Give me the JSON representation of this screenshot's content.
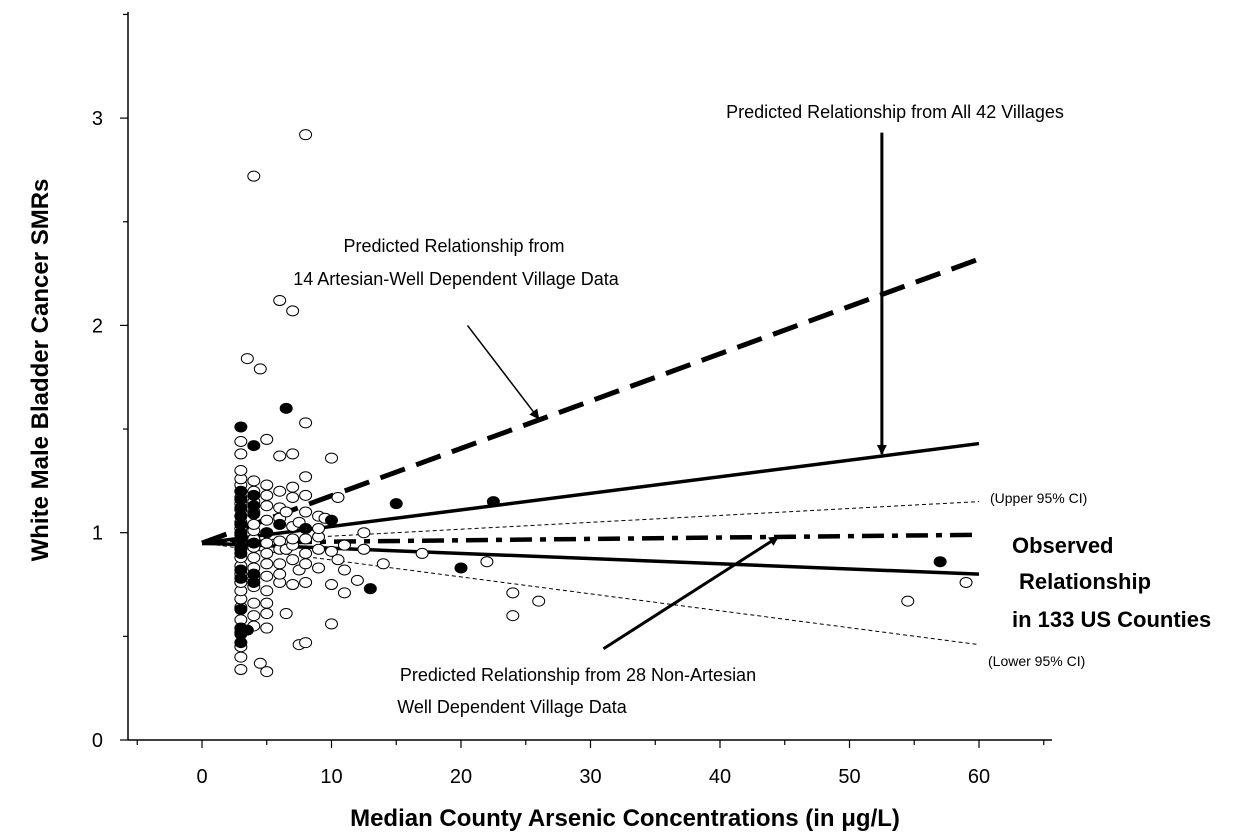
{
  "chart_data": {
    "type": "scatter",
    "xlabel": "Median County Arsenic Concentrations (in  μg/L)",
    "ylabel": "White Male Bladder Cancer SMRs",
    "xlim": [
      -5,
      65
    ],
    "ylim": [
      0,
      3.5
    ],
    "x_ticks": [
      0,
      10,
      20,
      30,
      40,
      50,
      60
    ],
    "y_ticks": [
      0,
      1,
      2,
      3
    ],
    "x_tick_labels": [
      "0",
      "10",
      "20",
      "30",
      "40",
      "50",
      "60"
    ],
    "y_tick_labels": [
      "0",
      "1",
      "2",
      "3"
    ],
    "grid": false,
    "series": [
      {
        "marker": "open-circle",
        "points": [
          [
            3,
            0.34
          ],
          [
            3,
            0.4
          ],
          [
            3,
            0.45
          ],
          [
            3,
            0.52
          ],
          [
            3,
            0.58
          ],
          [
            3,
            0.64
          ],
          [
            3,
            0.68
          ],
          [
            3,
            0.72
          ],
          [
            3,
            0.76
          ],
          [
            3,
            0.8
          ],
          [
            3,
            0.84
          ],
          [
            3,
            0.88
          ],
          [
            3,
            0.92
          ],
          [
            3,
            0.96
          ],
          [
            3,
            0.99
          ],
          [
            3,
            1.02
          ],
          [
            3,
            1.05
          ],
          [
            3,
            1.08
          ],
          [
            3,
            1.11
          ],
          [
            3,
            1.14
          ],
          [
            3,
            1.17
          ],
          [
            3,
            1.2
          ],
          [
            3,
            1.23
          ],
          [
            3,
            1.26
          ],
          [
            3,
            1.3
          ],
          [
            3,
            1.38
          ],
          [
            3,
            1.44
          ],
          [
            3.5,
            1.84
          ],
          [
            4,
            2.72
          ],
          [
            4,
            0.55
          ],
          [
            4,
            0.6
          ],
          [
            4,
            0.66
          ],
          [
            4,
            0.74
          ],
          [
            4,
            0.78
          ],
          [
            4,
            0.83
          ],
          [
            4,
            0.88
          ],
          [
            4,
            0.93
          ],
          [
            4,
            0.97
          ],
          [
            4,
            1.01
          ],
          [
            4,
            1.04
          ],
          [
            4,
            1.1
          ],
          [
            4,
            1.15
          ],
          [
            4,
            1.2
          ],
          [
            4,
            1.25
          ],
          [
            4.5,
            1.79
          ],
          [
            4.5,
            0.37
          ],
          [
            5,
            0.33
          ],
          [
            5,
            0.54
          ],
          [
            5,
            0.61
          ],
          [
            5,
            0.66
          ],
          [
            5,
            0.72
          ],
          [
            5,
            0.79
          ],
          [
            5,
            0.85
          ],
          [
            5,
            0.9
          ],
          [
            5,
            0.95
          ],
          [
            5,
            1.0
          ],
          [
            5,
            1.06
          ],
          [
            5,
            1.13
          ],
          [
            5,
            1.18
          ],
          [
            5,
            1.23
          ],
          [
            5,
            1.45
          ],
          [
            6,
            2.12
          ],
          [
            6,
            0.76
          ],
          [
            6,
            0.8
          ],
          [
            6,
            0.85
          ],
          [
            6,
            0.92
          ],
          [
            6,
            0.96
          ],
          [
            6,
            1.07
          ],
          [
            6,
            1.12
          ],
          [
            6,
            1.2
          ],
          [
            6,
            1.37
          ],
          [
            6.5,
            0.61
          ],
          [
            6.5,
            0.92
          ],
          [
            6.5,
            1.1
          ],
          [
            7,
            2.07
          ],
          [
            7,
            0.75
          ],
          [
            7,
            0.87
          ],
          [
            7,
            0.94
          ],
          [
            7,
            0.97
          ],
          [
            7,
            1.03
          ],
          [
            7,
            1.17
          ],
          [
            7,
            1.22
          ],
          [
            7,
            1.38
          ],
          [
            7.5,
            0.46
          ],
          [
            7.5,
            0.82
          ],
          [
            7.5,
            1.05
          ],
          [
            8,
            2.92
          ],
          [
            8,
            0.47
          ],
          [
            8,
            0.76
          ],
          [
            8,
            0.85
          ],
          [
            8,
            0.9
          ],
          [
            8,
            0.97
          ],
          [
            8,
            1.1
          ],
          [
            8,
            1.18
          ],
          [
            8,
            1.27
          ],
          [
            8,
            1.53
          ],
          [
            9,
            0.83
          ],
          [
            9,
            0.92
          ],
          [
            9,
            0.98
          ],
          [
            9,
            1.02
          ],
          [
            9,
            1.08
          ],
          [
            9.5,
            1.07
          ],
          [
            10,
            0.56
          ],
          [
            10,
            0.75
          ],
          [
            10,
            0.91
          ],
          [
            10,
            1.36
          ],
          [
            10.5,
            0.87
          ],
          [
            10.5,
            1.17
          ],
          [
            11,
            0.71
          ],
          [
            11,
            0.82
          ],
          [
            11,
            0.94
          ],
          [
            12,
            0.77
          ],
          [
            12.5,
            0.92
          ],
          [
            12.5,
            1.0
          ],
          [
            14,
            0.85
          ],
          [
            17,
            0.9
          ],
          [
            22,
            0.86
          ],
          [
            24,
            0.6
          ],
          [
            24,
            0.71
          ],
          [
            26,
            0.67
          ],
          [
            54.5,
            0.67
          ],
          [
            59,
            0.76
          ]
        ]
      },
      {
        "marker": "filled-circle",
        "points": [
          [
            3,
            0.47
          ],
          [
            3,
            0.51
          ],
          [
            3,
            0.54
          ],
          [
            3,
            0.63
          ],
          [
            3,
            0.78
          ],
          [
            3,
            0.82
          ],
          [
            3,
            0.9
          ],
          [
            3,
            0.93
          ],
          [
            3,
            0.97
          ],
          [
            3,
            1.0
          ],
          [
            3,
            1.04
          ],
          [
            3,
            1.08
          ],
          [
            3,
            1.12
          ],
          [
            3,
            1.16
          ],
          [
            3,
            1.2
          ],
          [
            3,
            1.51
          ],
          [
            3.5,
            0.53
          ],
          [
            4,
            0.76
          ],
          [
            4,
            0.8
          ],
          [
            4,
            0.95
          ],
          [
            4,
            1.09
          ],
          [
            4,
            1.13
          ],
          [
            4,
            1.18
          ],
          [
            4,
            1.42
          ],
          [
            5,
            1.0
          ],
          [
            6,
            1.04
          ],
          [
            6.5,
            1.6
          ],
          [
            8,
            1.02
          ],
          [
            10,
            1.06
          ],
          [
            13,
            0.73
          ],
          [
            15,
            1.14
          ],
          [
            20,
            0.83
          ],
          [
            22.5,
            1.15
          ],
          [
            57,
            0.86
          ]
        ]
      }
    ],
    "lines": [
      {
        "style": "dashed-thick",
        "x": [
          0,
          60
        ],
        "y": [
          0.95,
          2.32
        ]
      },
      {
        "style": "solid-thick",
        "x": [
          0,
          60
        ],
        "y": [
          0.95,
          1.43
        ]
      },
      {
        "style": "dash-dot-thick",
        "x": [
          0,
          60
        ],
        "y": [
          0.95,
          0.99
        ]
      },
      {
        "style": "solid-thick",
        "x": [
          0,
          60
        ],
        "y": [
          0.95,
          0.8
        ]
      },
      {
        "style": "thin-dashed",
        "x": [
          0,
          60
        ],
        "y": [
          0.95,
          1.15
        ]
      },
      {
        "style": "thin-dashed",
        "x": [
          0,
          60
        ],
        "y": [
          0.95,
          0.46
        ]
      }
    ],
    "annotations": [
      {
        "key": "all42",
        "lines": [
          "Predicted Relationship from All 42 Villages"
        ],
        "arrow_from": [
          52.5,
          2.93
        ],
        "arrow_to": [
          52.5,
          1.38
        ]
      },
      {
        "key": "artesian",
        "lines": [
          "Predicted Relationship from",
          "14 Artesian-Well Dependent Village Data"
        ],
        "arrow_from": [
          20.5,
          2.0
        ],
        "arrow_to": [
          26,
          1.55
        ]
      },
      {
        "key": "nonartesian",
        "lines": [
          "Predicted Relationship from 28 Non-Artesian",
          "Well Dependent Village Data"
        ],
        "arrow_from": [
          31,
          0.44
        ],
        "arrow_to": [
          44.5,
          0.98
        ]
      },
      {
        "key": "upper",
        "lines": [
          "(Upper 95% CI)"
        ]
      },
      {
        "key": "lower",
        "lines": [
          "(Lower 95% CI)"
        ]
      },
      {
        "key": "observed",
        "lines": [
          "Observed",
          "Relationship",
          "in 133 US Counties"
        ]
      }
    ]
  }
}
